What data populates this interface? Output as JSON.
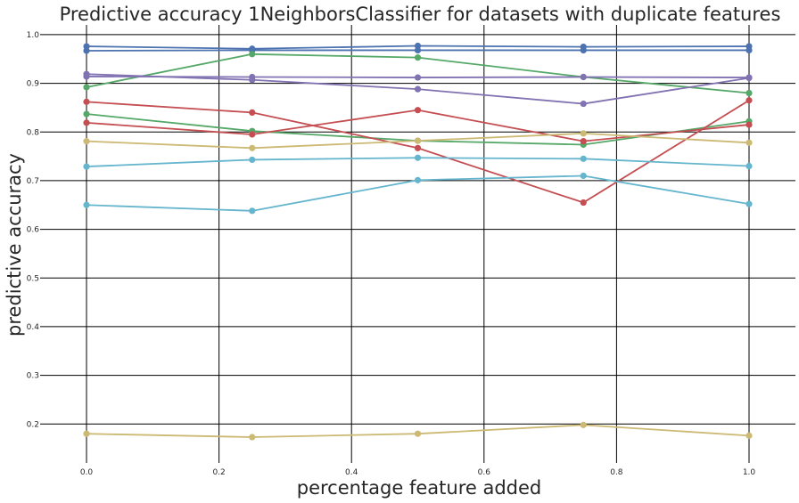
{
  "chart_data": {
    "type": "line",
    "title": "Predictive accuracy 1NeighborsClassifier for datasets with duplicate features",
    "xlabel": "percentage feature added",
    "ylabel": "predictive accuracy",
    "x": [
      0.0,
      0.25,
      0.5,
      0.75,
      1.0
    ],
    "xlim": [
      -0.07,
      1.07
    ],
    "ylim": [
      0.12,
      1.02
    ],
    "xticks": [
      0.0,
      0.2,
      0.4,
      0.6,
      0.8,
      1.0
    ],
    "xtick_labels": [
      "0.0",
      "0.2",
      "0.4",
      "0.6",
      "0.8",
      "1.0"
    ],
    "yticks": [
      0.2,
      0.3,
      0.4,
      0.5,
      0.6,
      0.7,
      0.8,
      0.9,
      1.0
    ],
    "ytick_labels": [
      "0.2",
      "0.3",
      "0.4",
      "0.5",
      "0.6",
      "0.7",
      "0.8",
      "0.9",
      "1.0"
    ],
    "grid": true,
    "legend": false,
    "series": [
      {
        "color": "#4c72b0",
        "values": [
          0.976,
          0.971,
          0.977,
          0.975,
          0.976
        ]
      },
      {
        "color": "#4c72b0",
        "values": [
          0.967,
          0.968,
          0.968,
          0.968,
          0.968
        ]
      },
      {
        "color": "#55a868",
        "values": [
          0.892,
          0.96,
          0.953,
          0.913,
          0.88
        ]
      },
      {
        "color": "#55a868",
        "values": [
          0.837,
          0.802,
          0.782,
          0.774,
          0.822
        ]
      },
      {
        "color": "#c44e52",
        "values": [
          0.862,
          0.84,
          0.767,
          0.655,
          0.865
        ]
      },
      {
        "color": "#c44e52",
        "values": [
          0.819,
          0.795,
          0.845,
          0.781,
          0.815
        ]
      },
      {
        "color": "#8172b2",
        "values": [
          0.919,
          0.907,
          0.888,
          0.858,
          0.911
        ]
      },
      {
        "color": "#8172b2",
        "values": [
          0.914,
          0.913,
          0.912,
          0.913,
          0.912
        ]
      },
      {
        "color": "#ccb974",
        "values": [
          0.781,
          0.767,
          0.782,
          0.797,
          0.778
        ]
      },
      {
        "color": "#ccb974",
        "values": [
          0.18,
          0.173,
          0.18,
          0.198,
          0.176
        ]
      },
      {
        "color": "#64b5cd",
        "values": [
          0.729,
          0.743,
          0.747,
          0.745,
          0.73
        ]
      },
      {
        "color": "#64b5cd",
        "values": [
          0.65,
          0.638,
          0.701,
          0.71,
          0.652
        ]
      }
    ]
  }
}
